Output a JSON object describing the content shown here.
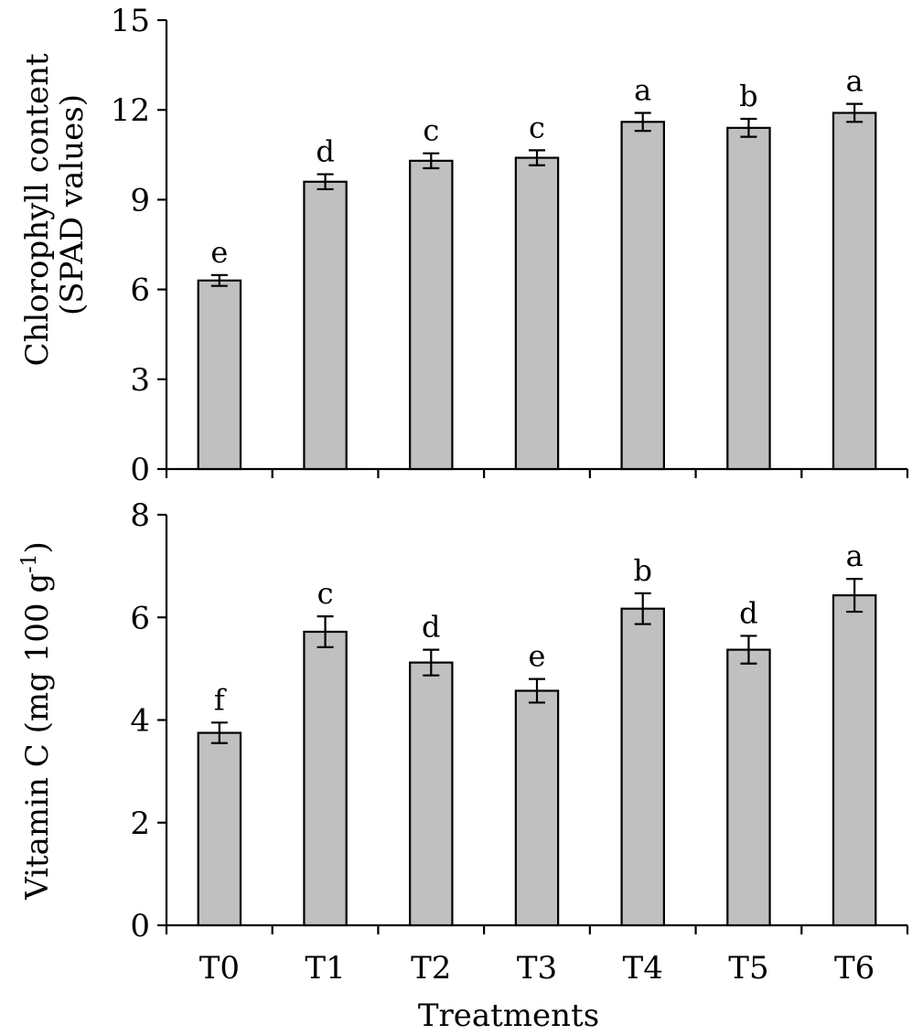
{
  "chart_data": [
    {
      "type": "bar",
      "categories": [
        "T0",
        "T1",
        "T2",
        "T3",
        "T4",
        "T5",
        "T6"
      ],
      "values": [
        6.3,
        9.6,
        10.3,
        10.4,
        11.6,
        11.4,
        11.9
      ],
      "errors": [
        0.18,
        0.25,
        0.25,
        0.25,
        0.3,
        0.3,
        0.3
      ],
      "letters": [
        "e",
        "d",
        "c",
        "c",
        "a",
        "b",
        "a"
      ],
      "ylabel_lines": [
        "Chlorophyll content",
        "(SPAD values)"
      ],
      "ylim": [
        0,
        15
      ],
      "yticks": [
        0,
        3,
        6,
        9,
        12,
        15
      ],
      "bar_color": "#c0c0c0",
      "grid": false
    },
    {
      "type": "bar",
      "categories": [
        "T0",
        "T1",
        "T2",
        "T3",
        "T4",
        "T5",
        "T6"
      ],
      "values": [
        3.75,
        5.72,
        5.12,
        4.57,
        6.17,
        5.37,
        6.43
      ],
      "errors": [
        0.2,
        0.3,
        0.25,
        0.23,
        0.3,
        0.27,
        0.32
      ],
      "letters": [
        "f",
        "c",
        "d",
        "e",
        "b",
        "d",
        "a"
      ],
      "ylabel": "Vitamin C (mg 100 g",
      "ylabel_sup": "-1",
      "ylabel_end": ")",
      "ylim": [
        0,
        8
      ],
      "yticks": [
        0,
        2,
        4,
        6,
        8
      ],
      "xlabel": "Treatments",
      "bar_color": "#c0c0c0",
      "grid": false
    }
  ]
}
